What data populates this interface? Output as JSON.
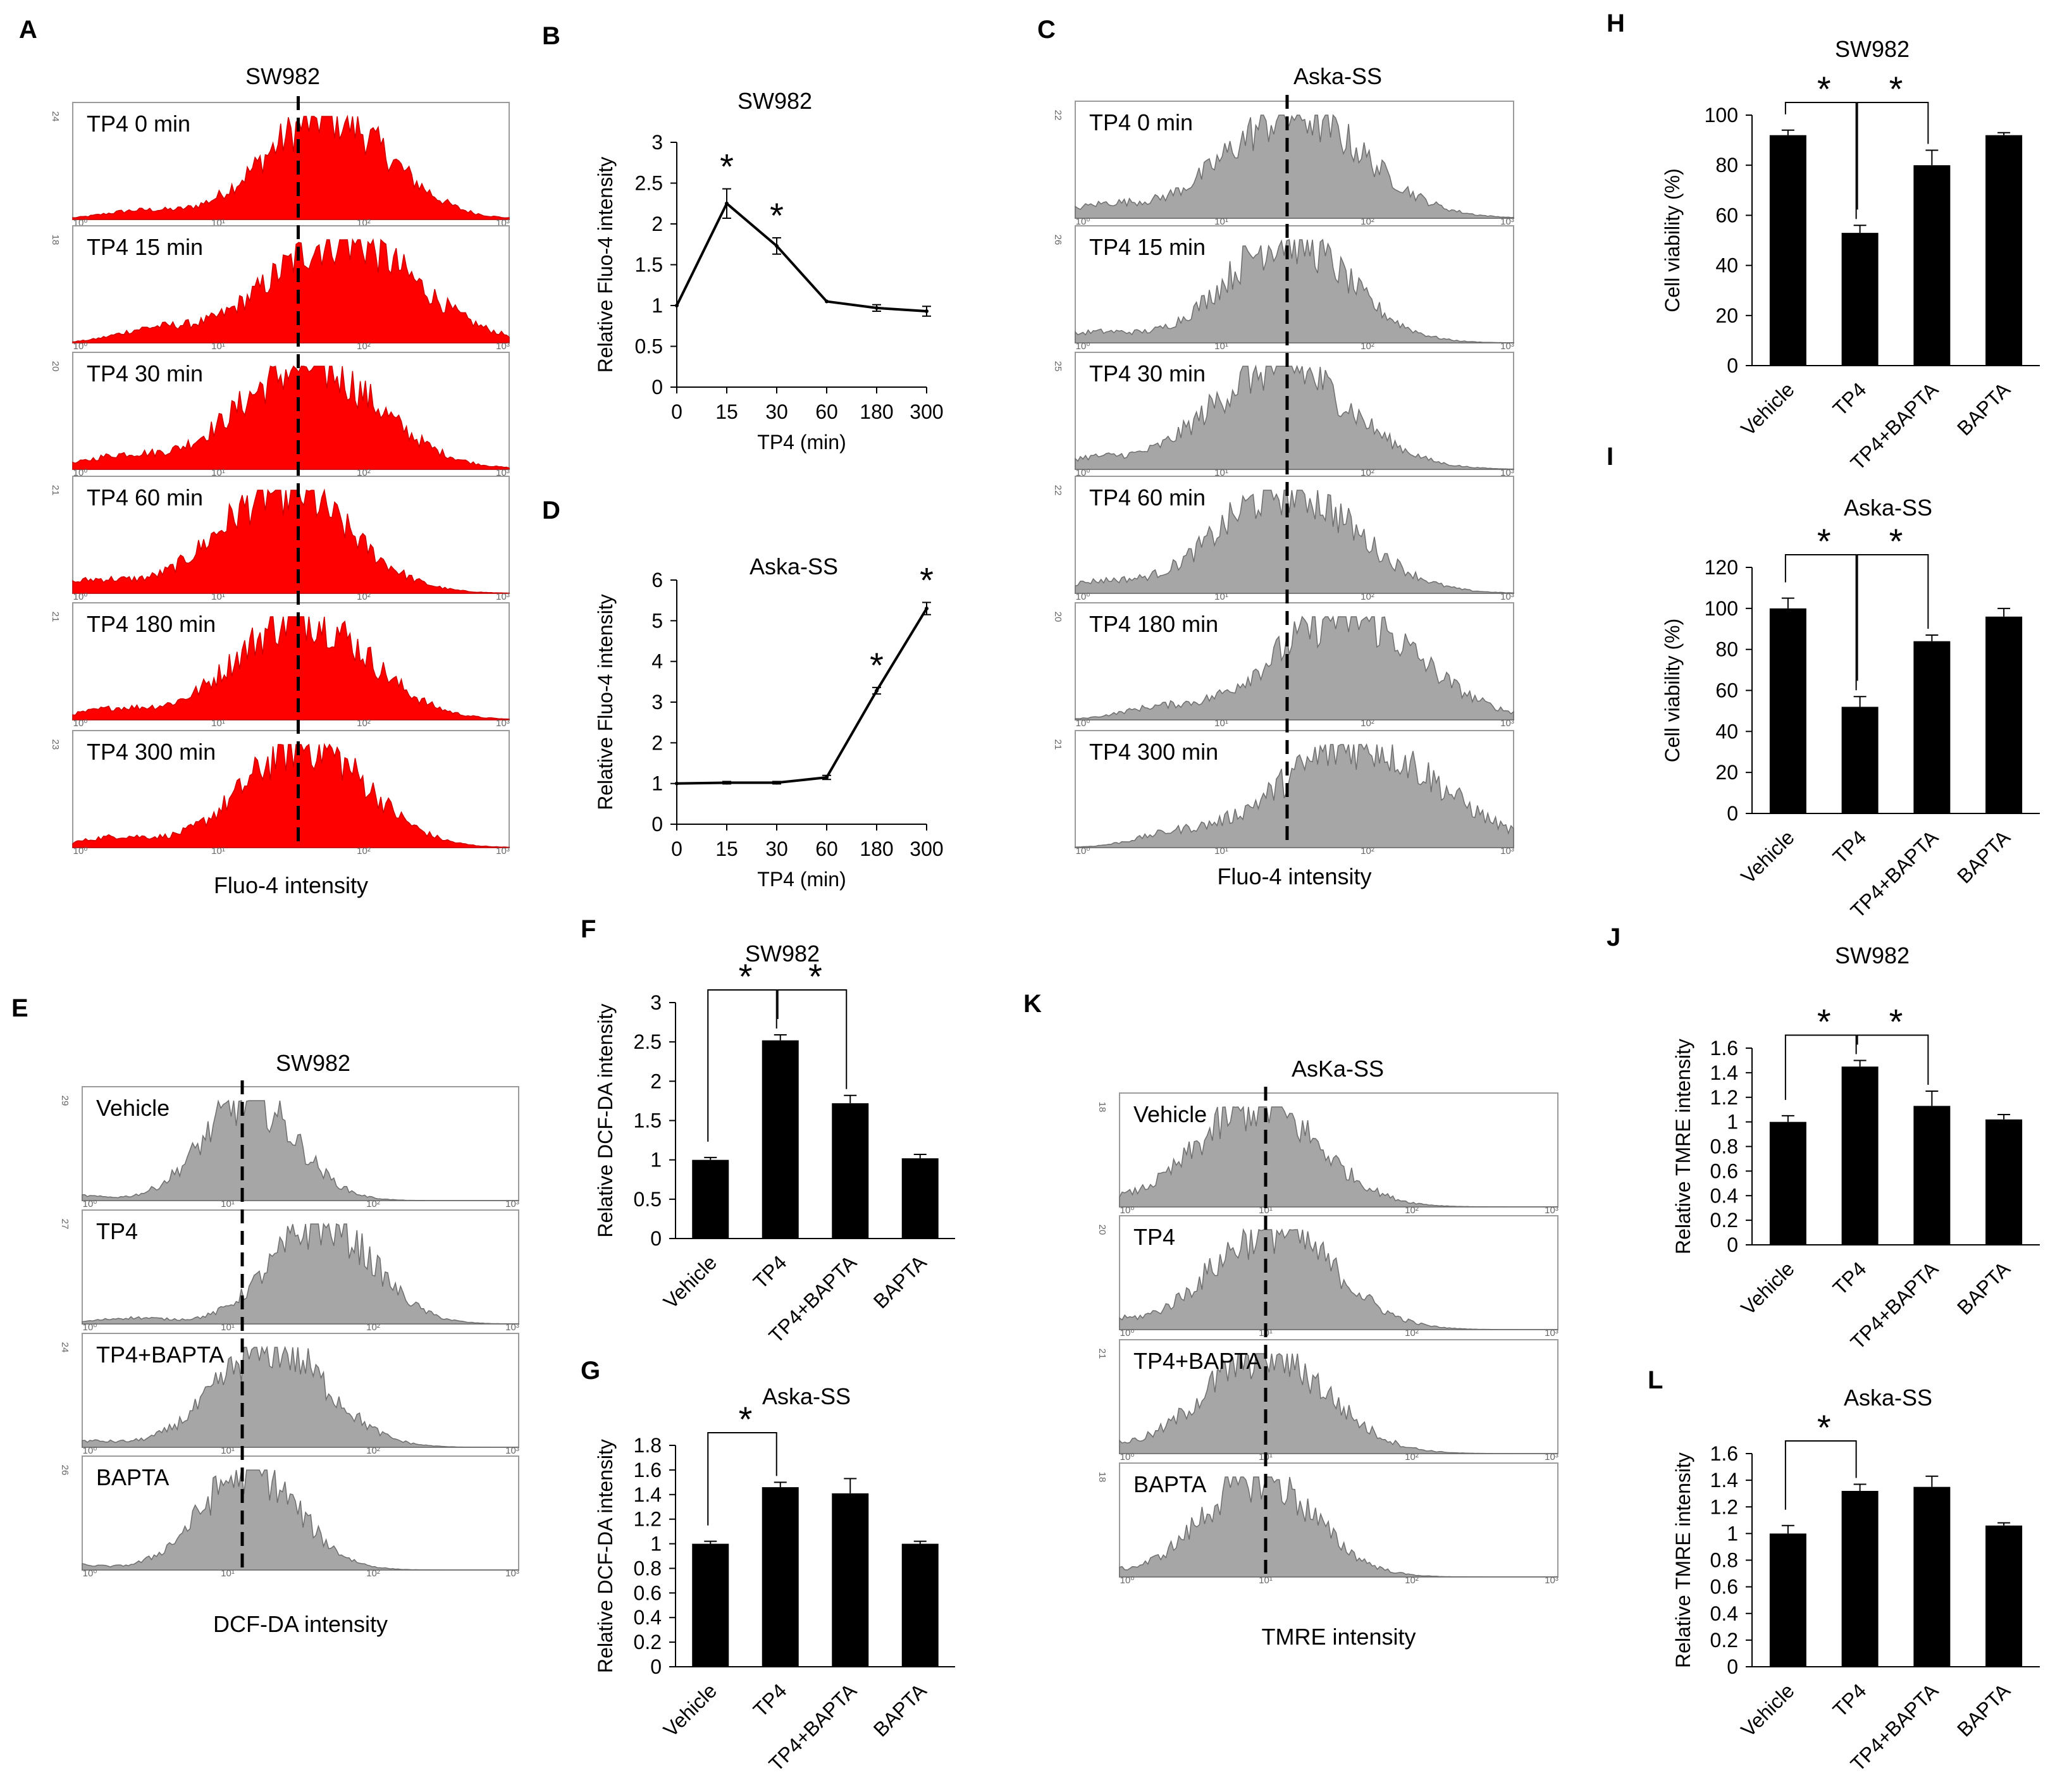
{
  "colors": {
    "red_fill": "#ff0000",
    "grey_fill": "#a6a6a6",
    "bar_fill": "#000000",
    "frame": "#9a9a9a",
    "text": "#000000"
  },
  "decade_labels": [
    "10⁰",
    "10¹",
    "10²",
    "10³"
  ],
  "chart_data": [
    {
      "id": "A",
      "type": "histogram",
      "panel_label": "A",
      "title": "SW982",
      "xlabel": "Fluo-4 intensity",
      "color": "red",
      "x_scale": "log",
      "x_range": [
        1,
        1000
      ],
      "reference": "dashed vertical line at median of TP4 0 min",
      "ref_log": 1.55,
      "rows": [
        {
          "label": "TP4 0 min",
          "ymax": "24",
          "shape": [
            1.75,
            0.43,
            0.08
          ]
        },
        {
          "label": "TP4 15 min",
          "ymax": "18",
          "shape": [
            1.85,
            0.5,
            0.12
          ]
        },
        {
          "label": "TP4 30 min",
          "ymax": "20",
          "shape": [
            1.62,
            0.48,
            0.12
          ]
        },
        {
          "label": "TP4 60 min",
          "ymax": "21",
          "shape": [
            1.45,
            0.45,
            0.12
          ]
        },
        {
          "label": "TP4 180 min",
          "ymax": "21",
          "shape": [
            1.58,
            0.45,
            0.1
          ]
        },
        {
          "label": "TP4 300 min",
          "ymax": "23",
          "shape": [
            1.6,
            0.42,
            0.1
          ]
        }
      ]
    },
    {
      "id": "B",
      "type": "line",
      "panel_label": "B",
      "title": "SW982",
      "xlabel": "TP4 (min)",
      "ylabel": "Relative Fluo-4 intensity",
      "categories": [
        "0",
        "15",
        "30",
        "60",
        "180",
        "300"
      ],
      "values": [
        1.0,
        2.25,
        1.73,
        1.05,
        0.97,
        0.93
      ],
      "errors": [
        0.0,
        0.18,
        0.1,
        0.0,
        0.04,
        0.06
      ],
      "significance": [
        false,
        true,
        true,
        false,
        false,
        false
      ],
      "ylim": [
        0,
        3
      ],
      "yticks": [
        "0",
        "0.5",
        "1",
        "1.5",
        "2",
        "2.5",
        "3"
      ]
    },
    {
      "id": "C",
      "type": "histogram",
      "panel_label": "C",
      "title": "Aska-SS",
      "xlabel": "Fluo-4 intensity",
      "color": "grey",
      "x_scale": "log",
      "x_range": [
        1,
        1000
      ],
      "ref_log": 1.45,
      "rows": [
        {
          "label": "TP4 0 min",
          "ymax": "22",
          "shape": [
            1.5,
            0.48,
            0.12
          ]
        },
        {
          "label": "TP4 15 min",
          "ymax": "26",
          "shape": [
            1.45,
            0.42,
            0.1
          ]
        },
        {
          "label": "TP4 30 min",
          "ymax": "25",
          "shape": [
            1.4,
            0.47,
            0.1
          ]
        },
        {
          "label": "TP4 60 min",
          "ymax": "22",
          "shape": [
            1.45,
            0.47,
            0.1
          ]
        },
        {
          "label": "TP4 180 min",
          "ymax": "20",
          "shape": [
            1.85,
            0.5,
            0.1
          ]
        },
        {
          "label": "TP4 300 min",
          "ymax": "21",
          "shape": [
            1.95,
            0.55,
            0.1
          ]
        }
      ]
    },
    {
      "id": "D",
      "type": "line",
      "panel_label": "D",
      "title": "Aska-SS",
      "xlabel": "TP4 (min)",
      "ylabel": "Relative Fluo-4 intensity",
      "categories": [
        "0",
        "15",
        "30",
        "60",
        "180",
        "300"
      ],
      "values": [
        1.0,
        1.02,
        1.02,
        1.15,
        3.28,
        5.3
      ],
      "errors": [
        0.0,
        0.03,
        0.03,
        0.05,
        0.08,
        0.15
      ],
      "significance": [
        false,
        false,
        false,
        false,
        true,
        true
      ],
      "ylim": [
        0,
        6
      ],
      "yticks": [
        "0",
        "1",
        "2",
        "3",
        "4",
        "5",
        "6"
      ]
    },
    {
      "id": "E",
      "type": "histogram",
      "panel_label": "E",
      "title": "SW982",
      "xlabel": "DCF-DA intensity",
      "color": "grey",
      "x_scale": "log",
      "x_range": [
        1,
        1000
      ],
      "ref_log": 1.1,
      "rows": [
        {
          "label": "Vehicle",
          "ymax": "29",
          "shape": [
            1.15,
            0.32,
            0.06
          ]
        },
        {
          "label": "TP4",
          "ymax": "27",
          "shape": [
            1.65,
            0.35,
            0.06
          ]
        },
        {
          "label": "TP4+BAPTA",
          "ymax": "24",
          "shape": [
            1.3,
            0.38,
            0.06
          ]
        },
        {
          "label": "BAPTA",
          "ymax": "26",
          "shape": [
            1.15,
            0.33,
            0.06
          ]
        }
      ]
    },
    {
      "id": "F",
      "type": "bar",
      "panel_label": "F",
      "title": "SW982",
      "ylabel": "Relative DCF-DA intensity",
      "categories": [
        "Vehicle",
        "TP4",
        "TP4+BAPTA",
        "BAPTA"
      ],
      "values": [
        1.0,
        2.52,
        1.72,
        1.02
      ],
      "errors": [
        0.03,
        0.07,
        0.1,
        0.05
      ],
      "ylim": [
        0,
        3
      ],
      "yticks": [
        "0",
        "0.5",
        "1",
        "1.5",
        "2",
        "2.5",
        "3"
      ],
      "brackets": [
        {
          "from": 0,
          "to": 1,
          "label": "*"
        },
        {
          "from": 1,
          "to": 2,
          "label": "*"
        }
      ]
    },
    {
      "id": "G",
      "type": "bar",
      "panel_label": "G",
      "title": "Aska-SS",
      "ylabel": "Relative DCF-DA intensity",
      "categories": [
        "Vehicle",
        "TP4",
        "TP4+BAPTA",
        "BAPTA"
      ],
      "values": [
        1.0,
        1.46,
        1.41,
        1.0
      ],
      "errors": [
        0.02,
        0.04,
        0.12,
        0.02
      ],
      "ylim": [
        0,
        1.8
      ],
      "yticks": [
        "0",
        "0.2",
        "0.4",
        "0.6",
        "0.8",
        "1",
        "1.2",
        "1.4",
        "1.6",
        "1.8"
      ],
      "brackets": [
        {
          "from": 0,
          "to": 1,
          "label": "*"
        }
      ]
    },
    {
      "id": "H",
      "type": "bar",
      "panel_label": "H",
      "title": "SW982",
      "ylabel": "Cell viability (%)",
      "categories": [
        "Vehicle",
        "TP4",
        "TP4+BAPTA",
        "BAPTA"
      ],
      "values": [
        92,
        53,
        80,
        92
      ],
      "errors": [
        2,
        3,
        6,
        1
      ],
      "ylim": [
        0,
        100
      ],
      "yticks": [
        "0",
        "20",
        "40",
        "60",
        "80",
        "100"
      ],
      "brackets": [
        {
          "from": 0,
          "to": 1,
          "label": "*"
        },
        {
          "from": 1,
          "to": 2,
          "label": "*"
        }
      ]
    },
    {
      "id": "I",
      "type": "bar",
      "panel_label": "I",
      "title": "Aska-SS",
      "ylabel": "Cell viability (%)",
      "categories": [
        "Vehicle",
        "TP4",
        "TP4+BAPTA",
        "BAPTA"
      ],
      "values": [
        100,
        52,
        84,
        96
      ],
      "errors": [
        5,
        5,
        3,
        4
      ],
      "ylim": [
        0,
        120
      ],
      "yticks": [
        "0",
        "20",
        "40",
        "60",
        "80",
        "100",
        "120"
      ],
      "brackets": [
        {
          "from": 0,
          "to": 1,
          "label": "*"
        },
        {
          "from": 1,
          "to": 2,
          "label": "*"
        }
      ]
    },
    {
      "id": "J",
      "type": "bar",
      "panel_label": "J",
      "title": "SW982",
      "ylabel": "Relative TMRE intensity",
      "categories": [
        "Vehicle",
        "TP4",
        "TP4+BAPTA",
        "BAPTA"
      ],
      "values": [
        1.0,
        1.45,
        1.13,
        1.02
      ],
      "errors": [
        0.05,
        0.05,
        0.12,
        0.04
      ],
      "ylim": [
        0,
        1.6
      ],
      "yticks": [
        "0",
        "0.2",
        "0.4",
        "0.6",
        "0.8",
        "1",
        "1.2",
        "1.4",
        "1.6"
      ],
      "brackets": [
        {
          "from": 0,
          "to": 1,
          "label": "*"
        },
        {
          "from": 1,
          "to": 2,
          "label": "*"
        }
      ]
    },
    {
      "id": "K",
      "type": "histogram",
      "panel_label": "K",
      "title": "AsKa-SS",
      "xlabel": "TMRE intensity",
      "color": "grey",
      "x_scale": "log",
      "x_range": [
        1,
        1000
      ],
      "ref_log": 1.0,
      "rows": [
        {
          "label": "Vehicle",
          "ymax": "18",
          "shape": [
            0.95,
            0.42,
            0.12
          ]
        },
        {
          "label": "TP4",
          "ymax": "20",
          "shape": [
            1.05,
            0.42,
            0.12
          ]
        },
        {
          "label": "TP4+BAPTA",
          "ymax": "21",
          "shape": [
            1.0,
            0.42,
            0.12
          ]
        },
        {
          "label": "BAPTA",
          "ymax": "18",
          "shape": [
            0.95,
            0.38,
            0.1
          ]
        }
      ]
    },
    {
      "id": "L",
      "type": "bar",
      "panel_label": "L",
      "title": "Aska-SS",
      "ylabel": "Relative TMRE intensity",
      "categories": [
        "Vehicle",
        "TP4",
        "TP4+BAPTA",
        "BAPTA"
      ],
      "values": [
        1.0,
        1.32,
        1.35,
        1.06
      ],
      "errors": [
        0.06,
        0.05,
        0.08,
        0.02
      ],
      "ylim": [
        0,
        1.6
      ],
      "yticks": [
        "0",
        "0.2",
        "0.4",
        "0.6",
        "0.8",
        "1",
        "1.2",
        "1.4",
        "1.6"
      ],
      "brackets": [
        {
          "from": 0,
          "to": 1,
          "label": "*"
        }
      ]
    }
  ]
}
